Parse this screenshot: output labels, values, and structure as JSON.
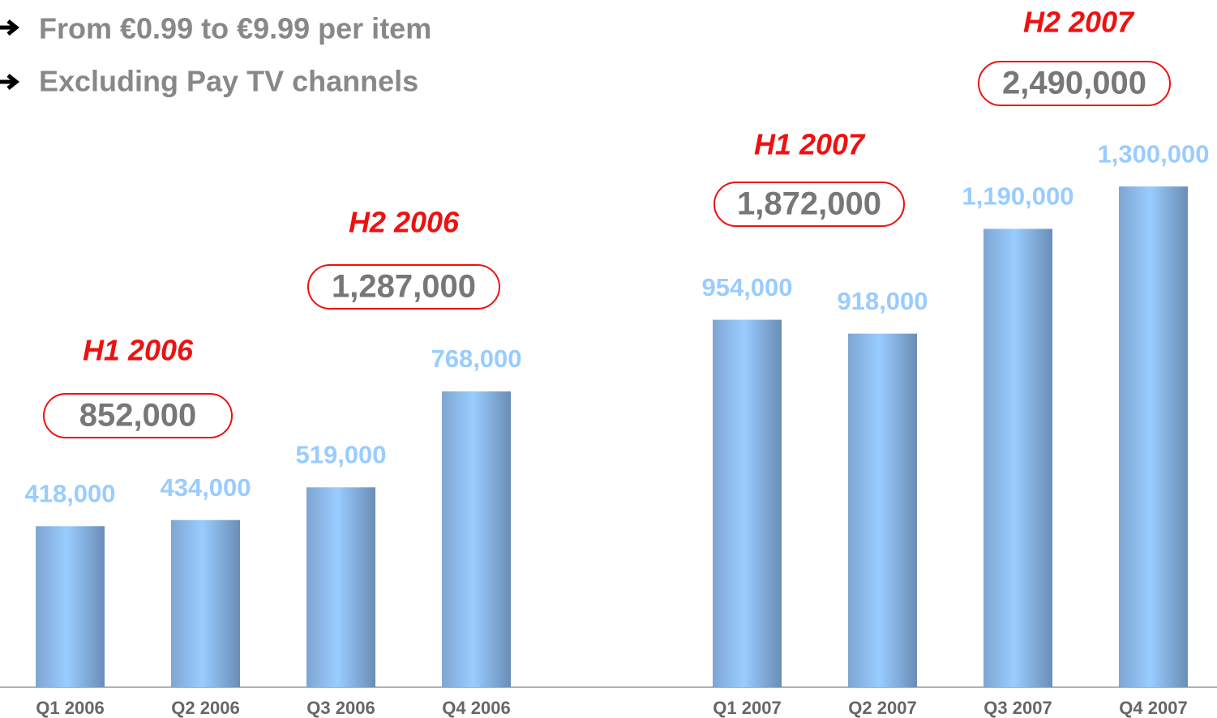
{
  "bullets": [
    "From €0.99 to €9.99 per item",
    "Excluding Pay TV channels"
  ],
  "chart_data": {
    "type": "bar",
    "categories": [
      "Q1 2006",
      "Q2 2006",
      "Q3 2006",
      "Q4 2006",
      null,
      "Q1 2007",
      "Q2 2007",
      "Q3 2007",
      "Q4 2007"
    ],
    "values": [
      418000,
      434000,
      519000,
      768000,
      null,
      954000,
      918000,
      1190000,
      1300000
    ],
    "value_labels": [
      "418,000",
      "434,000",
      "519,000",
      "768,000",
      null,
      "954,000",
      "918,000",
      "1,190,000",
      "1,300,000"
    ],
    "color": "#99ccff",
    "ylim": [
      0,
      1700000
    ],
    "annotations": [
      {
        "label": "H1 2006",
        "total": "852,000"
      },
      {
        "label": "H2 2006",
        "total": "1,287,000"
      },
      {
        "label": "H1 2007",
        "total": "1,872,000"
      },
      {
        "label": "H2 2007",
        "total": "2,490,000"
      }
    ]
  }
}
